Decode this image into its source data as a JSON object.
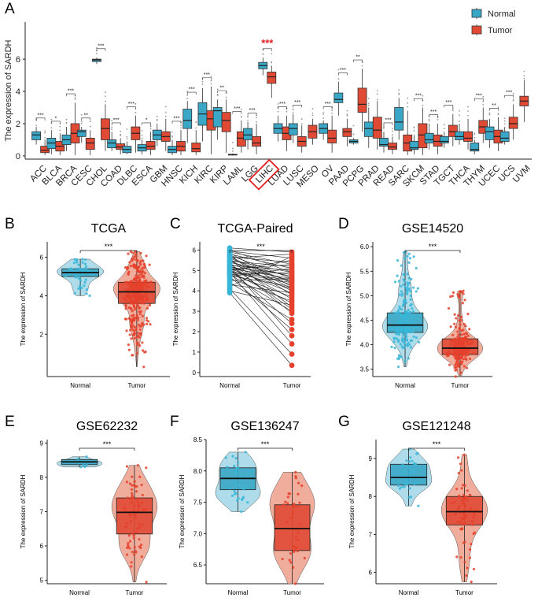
{
  "colors": {
    "normal": "#3aa7c6",
    "tumor": "#e04a35",
    "normal_point": "#38b6d8",
    "tumor_point": "#e5412c",
    "normal_violin": "#aedcea",
    "tumor_violin": "#f0ad9c",
    "highlight": "#e02020"
  },
  "chart_data": [
    {
      "panel": "A",
      "type": "box",
      "ylabel": "The expression of SARDH",
      "ylim": [
        -0.2,
        8.3
      ],
      "yticks": [
        0,
        2,
        4,
        6
      ],
      "legend": {
        "position": "top-right",
        "entries": [
          "Normal",
          "Tumor"
        ]
      },
      "highlight": "LIHC",
      "series_names": [
        "Normal",
        "Tumor"
      ],
      "categories": [
        {
          "name": "ACC",
          "sig": "***",
          "normal": [
            0.7,
            1.0,
            1.3,
            1.5,
            1.8
          ],
          "tumor": [
            0.05,
            0.2,
            0.35,
            0.6,
            1.0
          ]
        },
        {
          "name": "BLCA",
          "sig": "*",
          "normal": [
            0.1,
            0.45,
            0.8,
            1.1,
            1.6
          ],
          "tumor": [
            0.05,
            0.3,
            0.6,
            0.9,
            1.4
          ]
        },
        {
          "name": "BRCA",
          "sig": "***",
          "normal": [
            0.3,
            0.7,
            1.0,
            1.3,
            1.8
          ],
          "tumor": [
            0.05,
            0.8,
            1.4,
            2.0,
            3.3
          ]
        },
        {
          "name": "CESC",
          "sig": "**",
          "normal": [
            0.8,
            1.2,
            1.5,
            1.6,
            1.8
          ],
          "tumor": [
            0.05,
            0.4,
            0.8,
            1.1,
            1.6
          ]
        },
        {
          "name": "CHOL",
          "sig": "***",
          "normal": [
            5.7,
            5.85,
            5.95,
            6.0,
            6.1
          ],
          "tumor": [
            0.3,
            1.0,
            1.7,
            2.3,
            3.2
          ]
        },
        {
          "name": "COAD",
          "sig": "***",
          "normal": [
            0.3,
            0.5,
            0.8,
            1.0,
            1.5
          ],
          "tumor": [
            0.1,
            0.4,
            0.55,
            0.75,
            1.1
          ]
        },
        {
          "name": "DLBC",
          "sig": "***",
          "normal": [
            0.1,
            0.2,
            0.4,
            0.6,
            0.9
          ],
          "tumor": [
            0.2,
            1.0,
            1.4,
            1.8,
            2.5
          ]
        },
        {
          "name": "ESCA",
          "sig": "*",
          "normal": [
            0.1,
            0.3,
            0.5,
            0.7,
            1.0
          ],
          "tumor": [
            0.05,
            0.4,
            0.6,
            0.9,
            1.5
          ]
        },
        {
          "name": "GBM",
          "sig": "",
          "normal": [
            0.6,
            1.0,
            1.3,
            1.6,
            2.0
          ],
          "tumor": [
            0.3,
            0.9,
            1.2,
            1.5,
            2.3
          ]
        },
        {
          "name": "HNSC",
          "sig": "***",
          "normal": [
            0.05,
            0.2,
            0.4,
            0.6,
            1.0
          ],
          "tumor": [
            0.05,
            0.3,
            0.6,
            0.9,
            1.6
          ]
        },
        {
          "name": "KICH",
          "sig": "***",
          "normal": [
            0.8,
            1.7,
            2.2,
            2.9,
            3.4
          ],
          "tumor": [
            0.05,
            0.25,
            0.45,
            0.8,
            1.6
          ]
        },
        {
          "name": "KIRC",
          "sig": "***",
          "normal": [
            0.9,
            1.9,
            2.6,
            3.3,
            4.2
          ],
          "tumor": [
            0.1,
            1.6,
            2.3,
            2.8,
            4.3
          ]
        },
        {
          "name": "KIRP",
          "sig": "**",
          "normal": [
            1.0,
            1.8,
            2.8,
            3.0,
            3.5
          ],
          "tumor": [
            0.2,
            1.5,
            2.2,
            2.7,
            3.5
          ]
        },
        {
          "name": "LAML",
          "sig": "***",
          "normal": [
            0.02,
            0.05,
            0.08,
            0.1,
            0.15
          ],
          "tumor": [
            0.2,
            0.6,
            1.1,
            1.5,
            2.2
          ]
        },
        {
          "name": "LGG",
          "sig": "***",
          "normal": [
            0.4,
            1.0,
            1.3,
            1.7,
            2.1
          ],
          "tumor": [
            0.1,
            0.6,
            0.8,
            1.2,
            2.0
          ]
        },
        {
          "name": "LIHC",
          "sig": "***",
          "normal": [
            5.0,
            5.4,
            5.6,
            5.8,
            6.1
          ],
          "tumor": [
            3.6,
            4.5,
            4.9,
            5.2,
            5.6
          ]
        },
        {
          "name": "LUAD",
          "sig": "***",
          "normal": [
            0.9,
            1.4,
            1.7,
            2.0,
            2.5
          ],
          "tumor": [
            0.3,
            1.0,
            1.4,
            1.8,
            2.5
          ]
        },
        {
          "name": "LUSC",
          "sig": "***",
          "normal": [
            0.8,
            1.3,
            1.7,
            2.0,
            2.6
          ],
          "tumor": [
            0.2,
            0.6,
            0.9,
            1.2,
            1.9
          ]
        },
        {
          "name": "MESO",
          "sig": "",
          "normal": [],
          "tumor": [
            0.7,
            1.1,
            1.5,
            1.9,
            2.3
          ]
        },
        {
          "name": "OV",
          "sig": "***",
          "normal": [
            1.0,
            1.4,
            1.7,
            2.0,
            2.2
          ],
          "tumor": [
            0.2,
            0.8,
            1.1,
            1.6,
            2.5
          ]
        },
        {
          "name": "PAAD",
          "sig": "***",
          "normal": [
            2.5,
            3.3,
            3.5,
            3.9,
            4.6
          ],
          "tumor": [
            0.6,
            1.2,
            1.5,
            1.7,
            2.3
          ]
        },
        {
          "name": "PCPG",
          "sig": "**",
          "normal": [
            0.7,
            0.8,
            0.9,
            1.0,
            1.1
          ],
          "tumor": [
            1.5,
            2.7,
            3.2,
            4.2,
            5.4
          ]
        },
        {
          "name": "PRAD",
          "sig": "",
          "normal": [
            0.5,
            1.2,
            1.7,
            2.1,
            3.0
          ],
          "tumor": [
            0.4,
            1.1,
            1.6,
            2.4,
            3.4
          ]
        },
        {
          "name": "READ",
          "sig": "***",
          "normal": [
            0.2,
            0.6,
            0.7,
            1.1,
            1.5
          ],
          "tumor": [
            0.1,
            0.4,
            0.55,
            0.8,
            1.2
          ]
        },
        {
          "name": "SARC",
          "sig": "",
          "normal": [
            1.0,
            1.6,
            2.1,
            3.0,
            3.6
          ],
          "tumor": [
            0.05,
            0.3,
            0.8,
            1.3,
            2.8
          ]
        },
        {
          "name": "SKCM",
          "sig": "***",
          "normal": [
            0.1,
            0.4,
            0.5,
            0.9,
            1.3
          ],
          "tumor": [
            0.05,
            0.5,
            1.3,
            2.0,
            3.0
          ]
        },
        {
          "name": "STAD",
          "sig": "***",
          "normal": [
            0.4,
            0.8,
            1.0,
            1.4,
            2.0
          ],
          "tumor": [
            0.1,
            0.6,
            0.9,
            1.3,
            2.0
          ]
        },
        {
          "name": "TGCT",
          "sig": "***",
          "normal": [
            0.5,
            0.8,
            0.9,
            1.2,
            1.5
          ],
          "tumor": [
            0.6,
            1.2,
            1.5,
            1.9,
            2.6
          ]
        },
        {
          "name": "THCA",
          "sig": "",
          "normal": [
            0.7,
            1.0,
            1.2,
            1.5,
            2.0
          ],
          "tumor": [
            0.4,
            0.9,
            1.1,
            1.5,
            2.3
          ]
        },
        {
          "name": "THYM",
          "sig": "***",
          "normal": [
            0.1,
            0.3,
            0.4,
            0.8,
            1.0
          ],
          "tumor": [
            0.8,
            1.4,
            1.8,
            2.2,
            3.0
          ]
        },
        {
          "name": "UCEC",
          "sig": "**",
          "normal": [
            0.5,
            1.0,
            1.5,
            1.8,
            2.3
          ],
          "tumor": [
            0.3,
            0.8,
            1.2,
            1.6,
            2.4
          ]
        },
        {
          "name": "UCS",
          "sig": "***",
          "normal": [
            0.7,
            0.9,
            1.1,
            1.5,
            1.8
          ],
          "tumor": [
            1.0,
            1.7,
            2.0,
            2.4,
            3.2
          ]
        },
        {
          "name": "UVM",
          "sig": "",
          "normal": [],
          "tumor": [
            2.1,
            3.1,
            3.4,
            3.7,
            4.7
          ]
        }
      ]
    },
    {
      "panel": "B",
      "type": "violin-box",
      "title": "TCGA",
      "ylabel": "The expression of SARDH",
      "categories": [
        "Normal",
        "Tumor"
      ],
      "ylim": [
        -0.2,
        6.8
      ],
      "yticks": [
        2,
        4,
        6
      ],
      "sig": "***",
      "series": [
        {
          "name": "Normal",
          "min": 4.0,
          "q1": 5.0,
          "median": 5.2,
          "q3": 5.4,
          "max": 5.9,
          "n": 50
        },
        {
          "name": "Tumor",
          "min": 0.3,
          "q1": 3.6,
          "median": 4.2,
          "q3": 4.7,
          "max": 6.3,
          "n": 370
        }
      ]
    },
    {
      "panel": "C",
      "type": "paired",
      "title": "TCGA-Paired",
      "ylabel": "The expression of SARDH",
      "categories": [
        "Normal",
        "Tumor"
      ],
      "ylim": [
        -0.2,
        6.4
      ],
      "yticks": [
        0,
        1,
        2,
        3,
        4,
        5,
        6
      ],
      "sig": "***",
      "pairs": [
        [
          6.1,
          5.9
        ],
        [
          6.0,
          4.9
        ],
        [
          5.95,
          5.6
        ],
        [
          5.9,
          5.3
        ],
        [
          5.85,
          4.2
        ],
        [
          5.8,
          5.1
        ],
        [
          5.75,
          4.6
        ],
        [
          5.7,
          3.8
        ],
        [
          5.65,
          5.4
        ],
        [
          5.6,
          4.4
        ],
        [
          5.55,
          3.2
        ],
        [
          5.5,
          4.9
        ],
        [
          5.5,
          4.0
        ],
        [
          5.45,
          5.2
        ],
        [
          5.4,
          4.7
        ],
        [
          5.35,
          2.9
        ],
        [
          5.3,
          4.5
        ],
        [
          5.3,
          3.6
        ],
        [
          5.25,
          5.0
        ],
        [
          5.2,
          4.3
        ],
        [
          5.2,
          1.8
        ],
        [
          5.15,
          4.8
        ],
        [
          5.1,
          3.9
        ],
        [
          5.1,
          4.6
        ],
        [
          5.05,
          2.4
        ],
        [
          5.0,
          4.1
        ],
        [
          5.0,
          5.5
        ],
        [
          4.95,
          3.4
        ],
        [
          4.9,
          4.4
        ],
        [
          4.9,
          1.4
        ],
        [
          4.85,
          3.7
        ],
        [
          4.8,
          4.9
        ],
        [
          4.8,
          3.0
        ],
        [
          4.75,
          4.2
        ],
        [
          4.7,
          2.1
        ],
        [
          4.7,
          5.1
        ],
        [
          4.6,
          3.5
        ],
        [
          4.5,
          4.6
        ],
        [
          4.4,
          2.6
        ],
        [
          4.3,
          3.9
        ],
        [
          4.2,
          5.7
        ],
        [
          4.1,
          0.9
        ],
        [
          4.0,
          3.3
        ],
        [
          3.9,
          0.35
        ],
        [
          5.4,
          4.7
        ],
        [
          5.6,
          5.8
        ],
        [
          4.95,
          4.5
        ],
        [
          5.25,
          3.1
        ],
        [
          5.7,
          4.1
        ],
        [
          5.05,
          5.3
        ]
      ]
    },
    {
      "panel": "D",
      "type": "violin-box",
      "title": "GSE14520",
      "ylabel": "The expression of SARDH",
      "categories": [
        "Normal",
        "Tumor"
      ],
      "ylim": [
        3.35,
        6.1
      ],
      "yticks": [
        3.5,
        4.0,
        4.5,
        5.0,
        5.5,
        6.0
      ],
      "sig": "***",
      "series": [
        {
          "name": "Normal",
          "min": 3.55,
          "q1": 4.25,
          "median": 4.4,
          "q3": 4.65,
          "max": 5.9,
          "n": 220
        },
        {
          "name": "Tumor",
          "min": 3.35,
          "q1": 3.8,
          "median": 3.93,
          "q3": 4.12,
          "max": 5.1,
          "n": 225
        }
      ]
    },
    {
      "panel": "E",
      "type": "violin-box",
      "title": "GSE62232",
      "ylabel": "The expression of SARDH",
      "categories": [
        "Normal",
        "Tumor"
      ],
      "ylim": [
        4.9,
        9.1
      ],
      "yticks": [
        5,
        6,
        7,
        8,
        9
      ],
      "sig": "***",
      "series": [
        {
          "name": "Normal",
          "min": 8.3,
          "q1": 8.37,
          "median": 8.45,
          "q3": 8.52,
          "max": 8.6,
          "n": 10
        },
        {
          "name": "Tumor",
          "min": 4.95,
          "q1": 6.35,
          "median": 6.98,
          "q3": 7.4,
          "max": 8.35,
          "n": 81
        }
      ]
    },
    {
      "panel": "F",
      "type": "violin-box",
      "title": "GSE136247",
      "ylabel": "The expression of SARDH",
      "categories": [
        "Normal",
        "Tumor"
      ],
      "ylim": [
        6.2,
        8.5
      ],
      "yticks": [
        6.5,
        7.0,
        7.5,
        8.0,
        8.5
      ],
      "sig": "***",
      "series": [
        {
          "name": "Normal",
          "min": 7.35,
          "q1": 7.7,
          "median": 7.88,
          "q3": 8.05,
          "max": 8.3,
          "n": 30
        },
        {
          "name": "Tumor",
          "min": 6.2,
          "q1": 6.73,
          "median": 7.08,
          "q3": 7.46,
          "max": 7.98,
          "n": 39
        }
      ]
    },
    {
      "panel": "G",
      "type": "violin-box",
      "title": "GSE121248",
      "ylabel": "The expression of SARDH",
      "categories": [
        "Normal",
        "Tumor"
      ],
      "ylim": [
        5.7,
        9.5
      ],
      "yticks": [
        6,
        7,
        8,
        9
      ],
      "sig": "***",
      "series": [
        {
          "name": "Normal",
          "min": 7.75,
          "q1": 8.3,
          "median": 8.5,
          "q3": 8.85,
          "max": 9.25,
          "n": 37
        },
        {
          "name": "Tumor",
          "min": 5.75,
          "q1": 7.25,
          "median": 7.6,
          "q3": 8.0,
          "max": 9.1,
          "n": 70
        }
      ]
    }
  ]
}
